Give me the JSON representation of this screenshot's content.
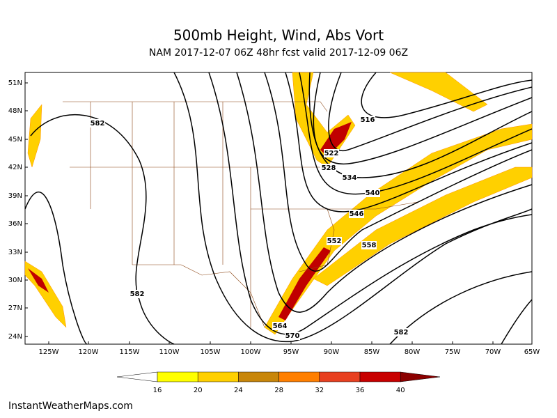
{
  "header": {
    "title": "500mb Height, Wind, Abs Vort",
    "subtitle": "NAM 2017-12-07 06Z 48hr fcst valid 2017-12-09 06Z"
  },
  "map": {
    "lat_labels": [
      "51N",
      "48N",
      "45N",
      "42N",
      "39N",
      "36N",
      "33N",
      "30N",
      "27N",
      "24N"
    ],
    "lon_labels": [
      "125W",
      "120W",
      "115W",
      "110W",
      "105W",
      "100W",
      "95W",
      "90W",
      "85W",
      "80W",
      "75W",
      "70W",
      "65W"
    ],
    "contour_labels": [
      "582",
      "516",
      "522",
      "528",
      "534",
      "540",
      "546",
      "552",
      "558",
      "582",
      "564",
      "570",
      "582"
    ]
  },
  "colorbar": {
    "labels": [
      16,
      20,
      24,
      28,
      32,
      36,
      40
    ],
    "colors": [
      "#ffffff",
      "#ffff00",
      "#ffd000",
      "#c8860a",
      "#ff7f00",
      "#e84020",
      "#c80000",
      "#8b0000"
    ]
  },
  "footer": {
    "credit": "InstantWeatherMaps.com"
  }
}
